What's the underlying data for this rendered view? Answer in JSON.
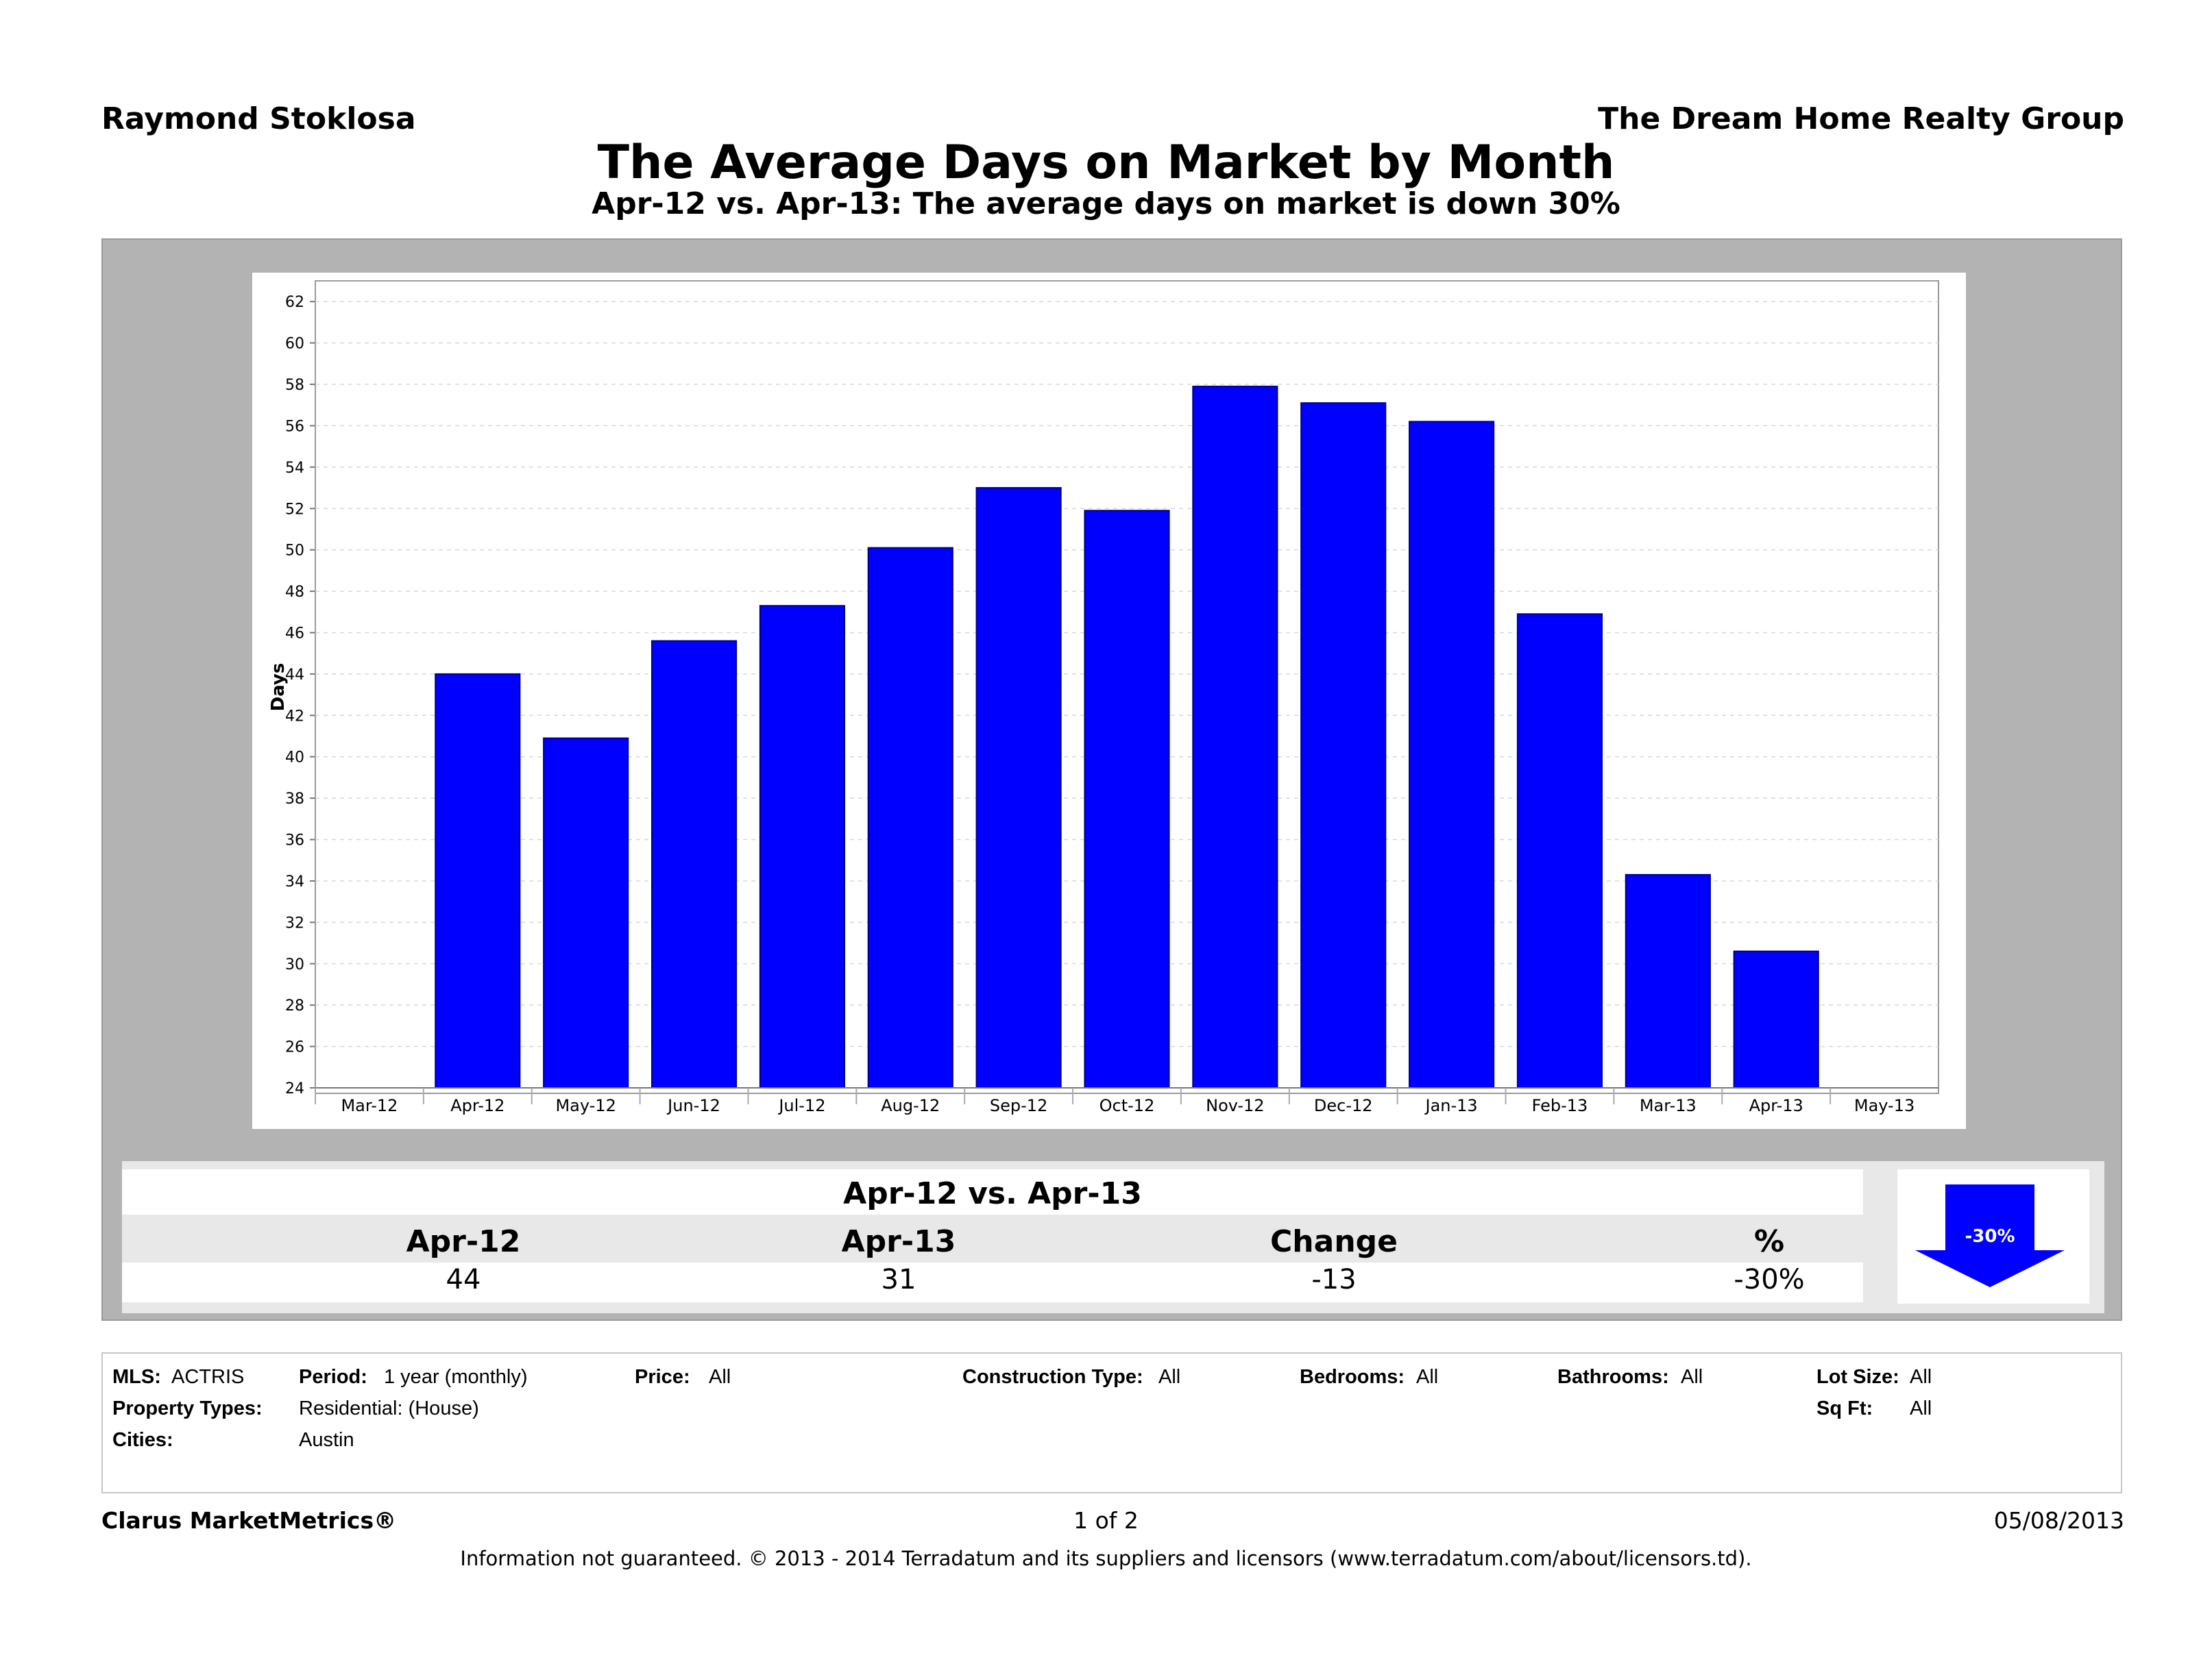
{
  "header": {
    "agent": "Raymond Stoklosa",
    "company": "The Dream Home Realty Group",
    "title": "The Average Days on Market by Month",
    "subtitle": "Apr-12 vs. Apr-13:  The average days on market is down 30%"
  },
  "chart_data": {
    "type": "bar",
    "ylabel": "Days",
    "xlabel": "",
    "ylim": [
      24,
      63
    ],
    "yticks": [
      24,
      26,
      28,
      30,
      32,
      34,
      36,
      38,
      40,
      42,
      44,
      46,
      48,
      50,
      52,
      54,
      56,
      58,
      60,
      62
    ],
    "x_tick_labels": [
      "Mar-12",
      "Apr-12",
      "May-12",
      "Jun-12",
      "Jul-12",
      "Aug-12",
      "Sep-12",
      "Oct-12",
      "Nov-12",
      "Dec-12",
      "Jan-13",
      "Feb-13",
      "Mar-13",
      "Apr-13",
      "May-13"
    ],
    "categories": [
      "Apr-12",
      "May-12",
      "Jun-12",
      "Jul-12",
      "Aug-12",
      "Sep-12",
      "Oct-12",
      "Nov-12",
      "Dec-12",
      "Jan-13",
      "Feb-13",
      "Mar-13",
      "Apr-13"
    ],
    "values": [
      44,
      40.9,
      45.6,
      47.3,
      50.1,
      53,
      51.9,
      57.9,
      57.1,
      56.2,
      46.9,
      34.3,
      30.6
    ],
    "bar_color": "#0000ff",
    "grid": true
  },
  "summary": {
    "heading": "Apr-12 vs. Apr-13",
    "headers": [
      "Apr-12",
      "Apr-13",
      "Change",
      "%"
    ],
    "values": [
      "44",
      "31",
      "-13",
      "-30%"
    ],
    "badge": "-30%",
    "arrow_color": "#0000ff"
  },
  "criteria": {
    "mls_label": "MLS:",
    "mls_value": "ACTRIS",
    "period_label": "Period:",
    "period_value": "1 year (monthly)",
    "price_label": "Price:",
    "price_value": "All",
    "construction_label": "Construction Type:",
    "construction_value": "All",
    "bedrooms_label": "Bedrooms:",
    "bedrooms_value": "All",
    "bathrooms_label": "Bathrooms:",
    "bathrooms_value": "All",
    "lot_label": "Lot Size:",
    "lot_value": "All",
    "property_label": "Property Types:",
    "property_value": "Residential: (House)",
    "sqft_label": "Sq Ft:",
    "sqft_value": "All",
    "cities_label": "Cities:",
    "cities_value": "Austin"
  },
  "footer": {
    "brand": "Clarus MarketMetrics®",
    "page": "1 of 2",
    "date": "05/08/2013",
    "disclaimer": "Information not guaranteed.  © 2013 - 2014 Terradatum and its suppliers and licensors (www.terradatum.com/about/licensors.td)."
  }
}
